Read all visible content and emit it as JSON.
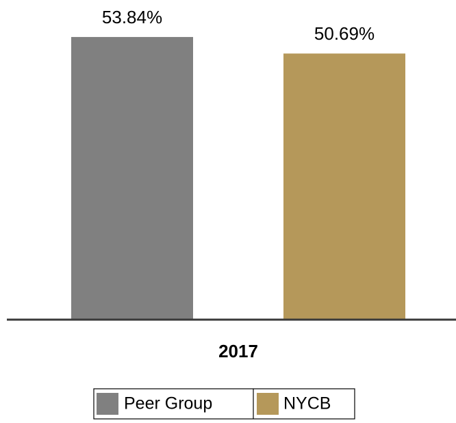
{
  "chart_data": {
    "type": "bar",
    "categories": [
      "2017"
    ],
    "series": [
      {
        "name": "Peer Group",
        "color": "#808080",
        "values": [
          53.84
        ],
        "value_labels": [
          "53.84%"
        ]
      },
      {
        "name": "NYCB",
        "color": "#b5985a",
        "values": [
          50.69
        ],
        "value_labels": [
          "50.69%"
        ]
      }
    ]
  }
}
